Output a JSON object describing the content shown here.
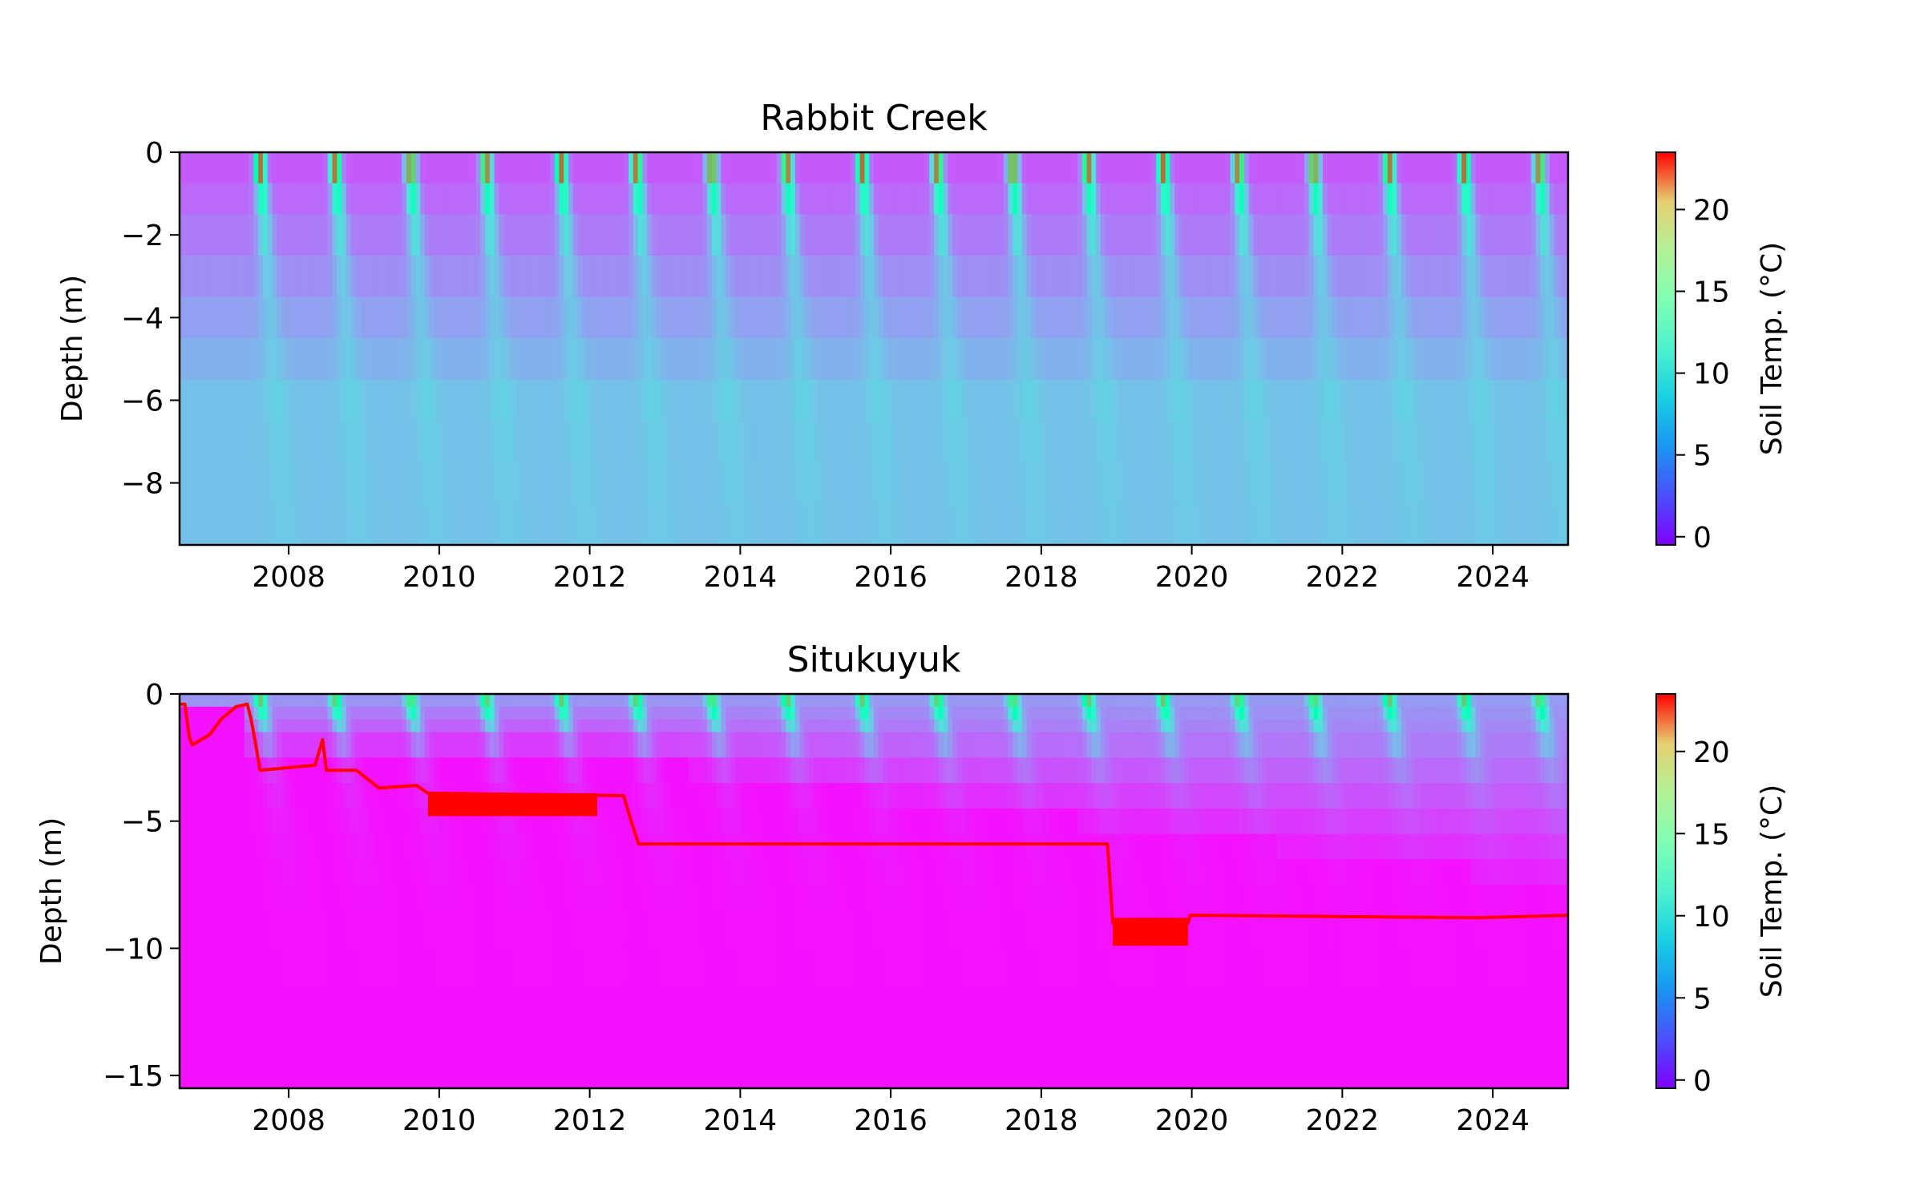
{
  "chart_data": [
    {
      "type": "heatmap",
      "title": "Rabbit Creek",
      "xlabel": "",
      "ylabel": "Depth (m)",
      "xlim": [
        2006.55,
        2025.0
      ],
      "ylim": [
        -9.5,
        0
      ],
      "x_ticks": [
        "2008",
        "2010",
        "2012",
        "2014",
        "2016",
        "2018",
        "2020",
        "2022",
        "2024"
      ],
      "y_ticks": [
        "0",
        "−2",
        "−4",
        "−6",
        "−8"
      ],
      "depth_layers_m": [
        0,
        -0.75,
        -1.5,
        -2.5,
        -3.5,
        -4.5,
        -5.5,
        -6.5,
        -7.5,
        -8.5,
        -9.5
      ],
      "summer_peak_years": [
        2007.55,
        2008.55,
        2009.55,
        2010.55,
        2011.55,
        2012.55,
        2013.55,
        2014.55,
        2015.55,
        2016.55,
        2017.55,
        2018.55,
        2019.55,
        2020.55,
        2021.55,
        2022.55,
        2023.55,
        2024.55
      ],
      "temperature_summary": {
        "surface_summer_max_c": 23,
        "surface_winter_c": 2,
        "deep_c": 6
      },
      "colorbar": {
        "label": "Soil Temp. (°C)",
        "ticks": [
          "0",
          "5",
          "10",
          "15",
          "20"
        ],
        "min": -0.5,
        "max": 23.5,
        "colormap": "rainbow"
      }
    },
    {
      "type": "heatmap",
      "title": "Situkuyuk",
      "xlabel": "",
      "ylabel": "Depth (m)",
      "xlim": [
        2006.55,
        2025.0
      ],
      "ylim": [
        -15.5,
        0
      ],
      "x_ticks": [
        "2008",
        "2010",
        "2012",
        "2014",
        "2016",
        "2018",
        "2020",
        "2022",
        "2024"
      ],
      "y_ticks": [
        "0",
        "−5",
        "−10",
        "−15"
      ],
      "summer_peak_years": [
        2007.55,
        2008.55,
        2009.55,
        2010.55,
        2011.55,
        2012.55,
        2013.55,
        2014.55,
        2015.55,
        2016.55,
        2017.55,
        2018.55,
        2019.55,
        2020.55,
        2021.55,
        2022.55,
        2023.55,
        2024.55
      ],
      "temperature_summary": {
        "surface_summer_max_c": 23,
        "surface_winter_c": 2,
        "deep_c": 0
      },
      "overlay_line": {
        "color": "#ff0000",
        "x": [
          2006.55,
          2006.62,
          2006.68,
          2006.72,
          2006.95,
          2007.1,
          2007.3,
          2007.45,
          2007.5,
          2007.55,
          2007.62,
          2008.35,
          2008.45,
          2008.5,
          2008.9,
          2009.2,
          2009.7,
          2009.85,
          2012.45,
          2012.55,
          2012.65,
          2015.0,
          2018.88,
          2018.95,
          2019.95,
          2019.98,
          2023.8,
          2025.0
        ],
        "y": [
          -0.4,
          -0.4,
          -1.7,
          -2.0,
          -1.6,
          -1.0,
          -0.5,
          -0.4,
          -1.0,
          -1.8,
          -3.0,
          -2.8,
          -1.8,
          -3.0,
          -3.0,
          -3.7,
          -3.6,
          -3.9,
          -4.0,
          -5.0,
          -5.9,
          -5.9,
          -5.9,
          -9.0,
          -9.0,
          -8.7,
          -8.8,
          -8.7
        ]
      },
      "overlay_bands": [
        {
          "x0": 2009.85,
          "x1": 2012.1,
          "y0": -3.9,
          "y1": -4.8
        },
        {
          "x0": 2018.95,
          "x1": 2019.95,
          "y0": -8.8,
          "y1": -9.9
        }
      ],
      "colorbar": {
        "label": "Soil Temp. (°C)",
        "ticks": [
          "0",
          "5",
          "10",
          "15",
          "20"
        ],
        "min": -0.5,
        "max": 23.5,
        "colormap": "rainbow"
      }
    }
  ]
}
